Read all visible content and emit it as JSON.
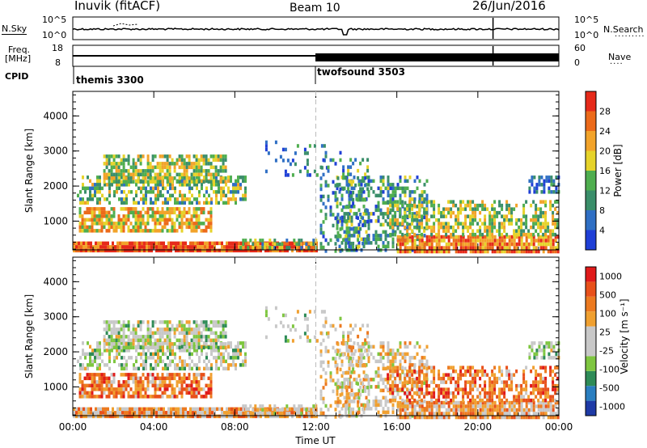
{
  "header": {
    "station": "Inuvik (fitACF)",
    "beam": "Beam 10",
    "date": "26/Jun/2016"
  },
  "noise_panel": {
    "left_label": "N.Sky",
    "right_label": "N.Search",
    "left_ticks": [
      "10^5",
      "10^0"
    ],
    "right_ticks": [
      "10^5",
      "10^0"
    ]
  },
  "freq_panel": {
    "left_label_line1": "Freq.",
    "left_label_line2": "[MHz]",
    "right_label": "Nave",
    "left_ticks": [
      "18",
      "8"
    ],
    "right_ticks": [
      "60",
      "0"
    ]
  },
  "cpid_panel": {
    "label": "CPID",
    "modes": [
      {
        "name": "themis 3300",
        "start_hour": 0
      },
      {
        "name": "twofsound 3503",
        "start_hour": 12.05
      }
    ]
  },
  "colors": {
    "power": [
      "#1f3fd6",
      "#2f6fc4",
      "#3a8e6a",
      "#4fae4f",
      "#e6d32a",
      "#f2a32a",
      "#ec6a1a",
      "#e62a1a"
    ],
    "velocity": [
      "#1e3aa6",
      "#2a7ec0",
      "#2e8b57",
      "#7ec640",
      "#c8c8c8",
      "#c8c8c8",
      "#f0a030",
      "#ec7a20",
      "#e8501a",
      "#e01a1a"
    ]
  },
  "chart_data": [
    {
      "type": "heatmap",
      "title": "Power",
      "xlabel": "Time UT",
      "ylabel": "Slant Range [km]",
      "x_ticks": [
        "00:00",
        "04:00",
        "08:00",
        "12:00",
        "16:00",
        "20:00",
        "00:00"
      ],
      "xlim_hours": [
        0,
        24
      ],
      "y_ticks": [
        1000,
        2000,
        3000,
        4000
      ],
      "ylim": [
        180,
        4700
      ],
      "colorbar_label": "Power [dB]",
      "colorbar_ticks": [
        4,
        8,
        12,
        16,
        20,
        24,
        28
      ],
      "colorbar_range": [
        0,
        32
      ]
    },
    {
      "type": "heatmap",
      "title": "Velocity",
      "xlabel": "Time UT",
      "ylabel": "Slant Range [km]",
      "x_ticks": [
        "00:00",
        "04:00",
        "08:00",
        "12:00",
        "16:00",
        "20:00",
        "00:00"
      ],
      "xlim_hours": [
        0,
        24
      ],
      "y_ticks": [
        1000,
        2000,
        3000,
        4000
      ],
      "ylim": [
        180,
        4700
      ],
      "colorbar_label": "Velocity [m s⁻¹]",
      "colorbar_ticks": [
        "1000",
        "500",
        "100",
        "25",
        "-25",
        "-100",
        "-500",
        "-1000"
      ]
    }
  ]
}
